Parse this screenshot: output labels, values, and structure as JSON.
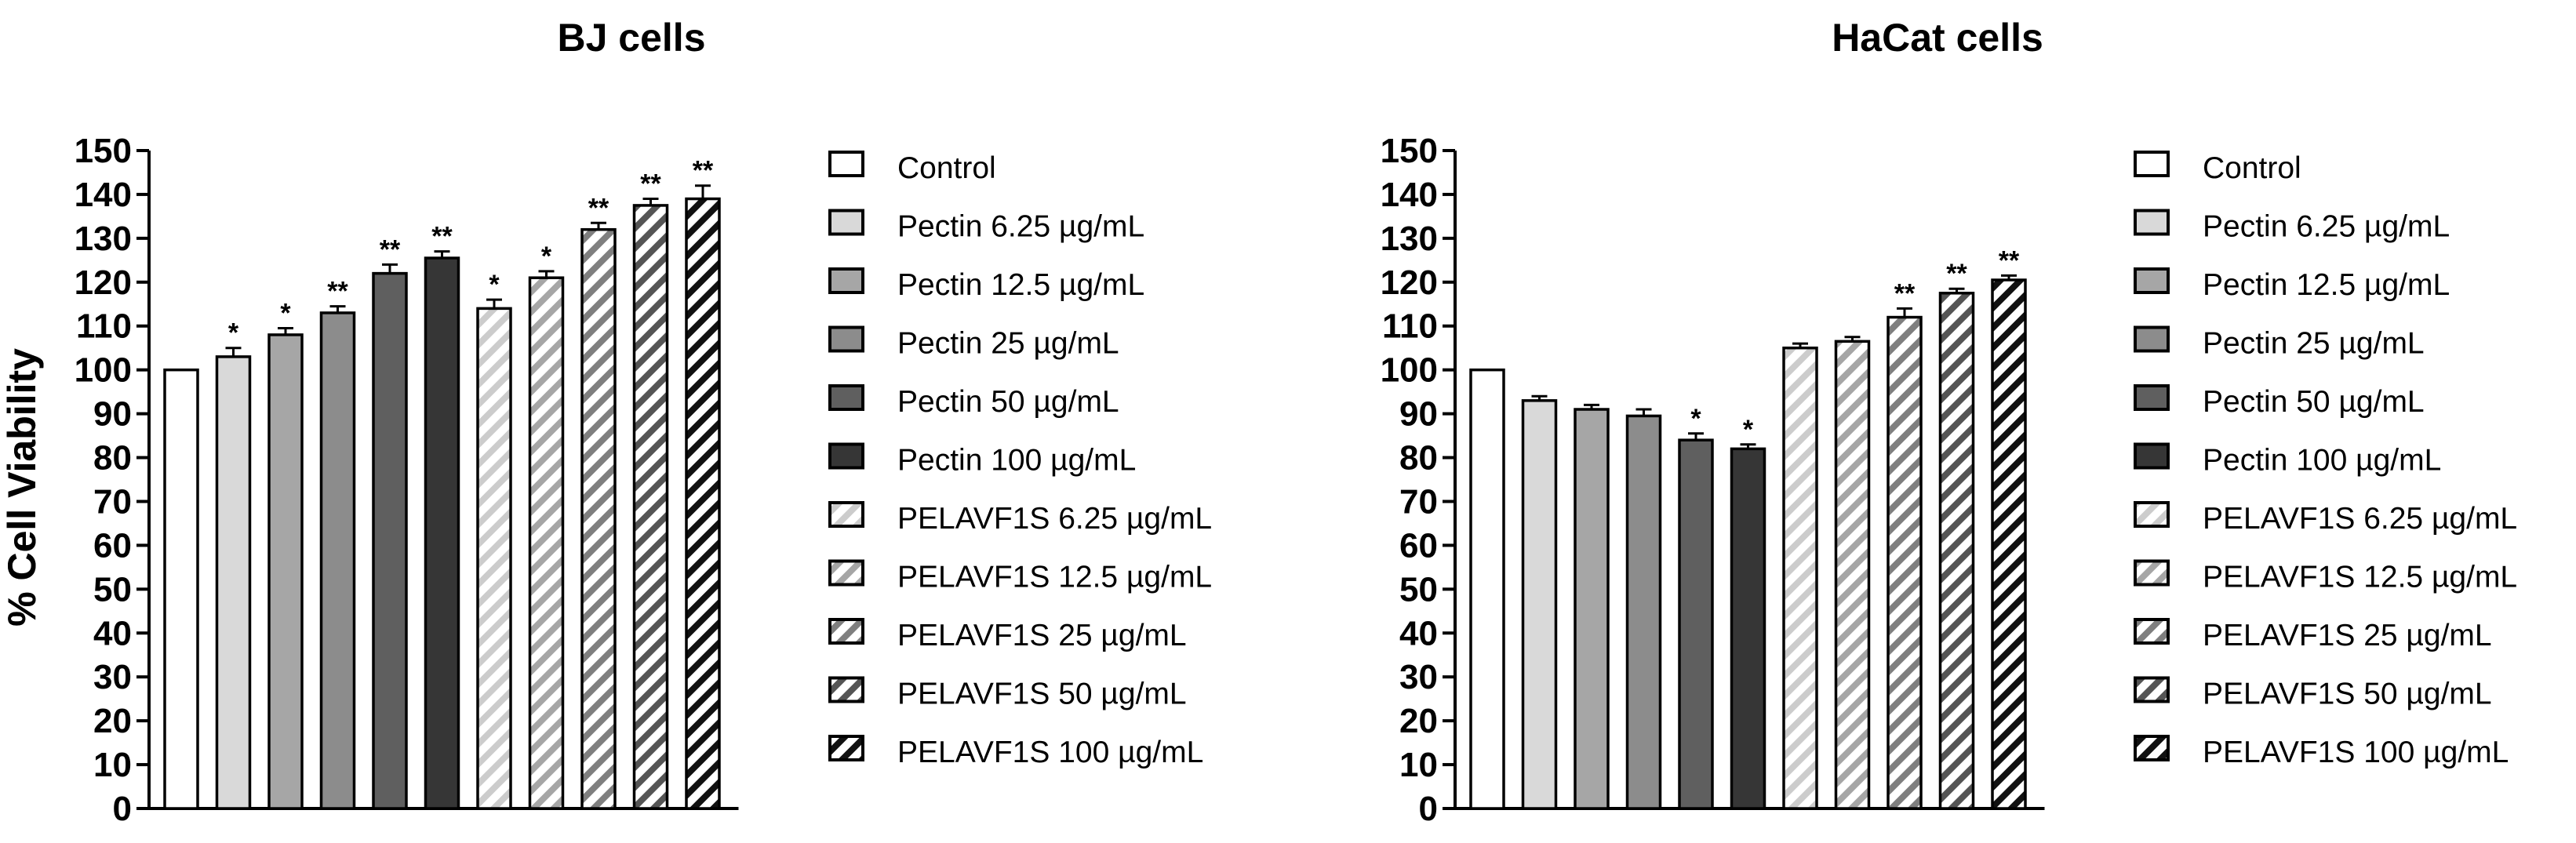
{
  "chart_data": [
    {
      "type": "bar",
      "title": "BJ cells",
      "xlabel": "",
      "ylabel": "% Cell Viability",
      "ylim": [
        0,
        150
      ],
      "yticks": [
        0,
        10,
        20,
        30,
        40,
        50,
        60,
        70,
        80,
        90,
        100,
        110,
        120,
        130,
        140,
        150
      ],
      "legend_position": "right",
      "grid": false,
      "categories": [
        "Control",
        "Pectin 6.25 µg/mL",
        "Pectin 12.5 µg/mL",
        "Pectin 25 µg/mL",
        "Pectin 50 µg/mL",
        "Pectin 100 µg/mL",
        "PELAVF1S 6.25 µg/mL",
        "PELAVF1S 12.5 µg/mL",
        "PELAVF1S 25 µg/mL",
        "PELAVF1S 50 µg/mL",
        "PELAVF1S 100 µg/mL"
      ],
      "values": [
        100,
        103,
        108,
        113,
        122,
        125.5,
        114,
        121,
        132,
        137.5,
        139
      ],
      "errors": [
        0,
        2,
        1.5,
        1.5,
        2,
        1.5,
        2,
        1.5,
        1.5,
        1.5,
        3
      ],
      "significance": [
        "",
        "*",
        "*",
        "**",
        "**",
        "**",
        "*",
        "*",
        "**",
        "**",
        "**"
      ]
    },
    {
      "type": "bar",
      "title": "HaCat cells",
      "xlabel": "",
      "ylabel": "% Cell Viability",
      "ylim": [
        0,
        150
      ],
      "yticks": [
        0,
        10,
        20,
        30,
        40,
        50,
        60,
        70,
        80,
        90,
        100,
        110,
        120,
        130,
        140,
        150
      ],
      "legend_position": "right",
      "grid": false,
      "categories": [
        "Control",
        "Pectin 6.25 µg/mL",
        "Pectin 12.5 µg/mL",
        "Pectin 25 µg/mL",
        "Pectin 50 µg/mL",
        "Pectin 100 µg/mL",
        "PELAVF1S 6.25 µg/mL",
        "PELAVF1S 12.5 µg/mL",
        "PELAVF1S 25 µg/mL",
        "PELAVF1S 50 µg/mL",
        "PELAVF1S 100 µg/mL"
      ],
      "values": [
        100,
        93,
        91,
        89.5,
        84,
        82,
        105,
        106.5,
        112,
        117.5,
        120.5
      ],
      "errors": [
        0,
        1,
        1,
        1.5,
        1.5,
        1,
        1,
        1,
        2,
        1,
        1
      ],
      "significance": [
        "",
        "",
        "",
        "",
        "*",
        "*",
        "",
        "",
        "**",
        "**",
        "**"
      ]
    }
  ],
  "bar_styles": [
    {
      "fill": "#ffffff",
      "hatch": false
    },
    {
      "fill": "#d9d9d9",
      "hatch": false
    },
    {
      "fill": "#a6a6a6",
      "hatch": false
    },
    {
      "fill": "#8c8c8c",
      "hatch": false
    },
    {
      "fill": "#5f5f5f",
      "hatch": false
    },
    {
      "fill": "#363636",
      "hatch": false
    },
    {
      "fill": "#ffffff",
      "hatch": true,
      "hatch_color": "#cccccc"
    },
    {
      "fill": "#ffffff",
      "hatch": true,
      "hatch_color": "#a6a6a6"
    },
    {
      "fill": "#ffffff",
      "hatch": true,
      "hatch_color": "#7f7f7f"
    },
    {
      "fill": "#ffffff",
      "hatch": true,
      "hatch_color": "#555555"
    },
    {
      "fill": "#ffffff",
      "hatch": true,
      "hatch_color": "#111111"
    }
  ]
}
